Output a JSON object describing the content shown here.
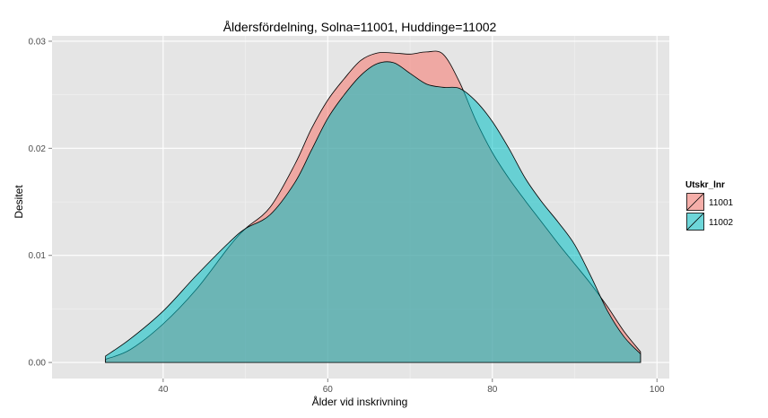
{
  "chart_data": {
    "type": "area",
    "title": "Åldersfördelning, Solna=11001, Huddinge=11002",
    "xlabel": "Ålder vid inskrivning",
    "ylabel": "Desitet",
    "xlim": [
      26.5,
      101.5
    ],
    "ylim": [
      -0.0015,
      0.0305
    ],
    "x_ticks": [
      40,
      60,
      80,
      100
    ],
    "x_tick_labels": [
      "40",
      "60",
      "80",
      "100"
    ],
    "y_ticks": [
      0,
      0.01,
      0.02,
      0.03
    ],
    "y_tick_labels": [
      "0.00",
      "0.01",
      "0.02",
      "0.03"
    ],
    "grid": true,
    "legend": {
      "title": "Utskr_lnr",
      "position": "right"
    },
    "series": [
      {
        "name": "11001",
        "color": "#F8766D",
        "x": [
          33,
          36,
          40,
          44,
          48,
          50,
          53,
          56,
          58,
          60,
          62,
          64,
          66,
          68,
          70,
          72,
          74,
          76,
          78,
          80,
          82,
          84,
          86,
          88,
          90,
          92,
          94,
          96,
          98
        ],
        "y": [
          0.0003,
          0.0012,
          0.0036,
          0.0068,
          0.0108,
          0.0125,
          0.0145,
          0.0185,
          0.0218,
          0.0245,
          0.0265,
          0.0282,
          0.0289,
          0.0289,
          0.0288,
          0.029,
          0.0288,
          0.0262,
          0.0226,
          0.0196,
          0.0172,
          0.0151,
          0.0131,
          0.0111,
          0.0092,
          0.0073,
          0.0052,
          0.0029,
          0.001
        ]
      },
      {
        "name": "11002",
        "color": "#00BFC4",
        "x": [
          33,
          36,
          40,
          44,
          48,
          50,
          53,
          56,
          58,
          60,
          62,
          64,
          66,
          68,
          70,
          72,
          74,
          76,
          78,
          80,
          82,
          84,
          86,
          88,
          90,
          92,
          94,
          96,
          98
        ],
        "y": [
          0.0006,
          0.0022,
          0.0048,
          0.0081,
          0.0112,
          0.0125,
          0.0138,
          0.0168,
          0.0198,
          0.0228,
          0.025,
          0.0268,
          0.0279,
          0.028,
          0.027,
          0.026,
          0.0257,
          0.0256,
          0.0244,
          0.0225,
          0.02,
          0.0172,
          0.015,
          0.0131,
          0.011,
          0.008,
          0.0048,
          0.0024,
          0.0008
        ]
      }
    ]
  }
}
